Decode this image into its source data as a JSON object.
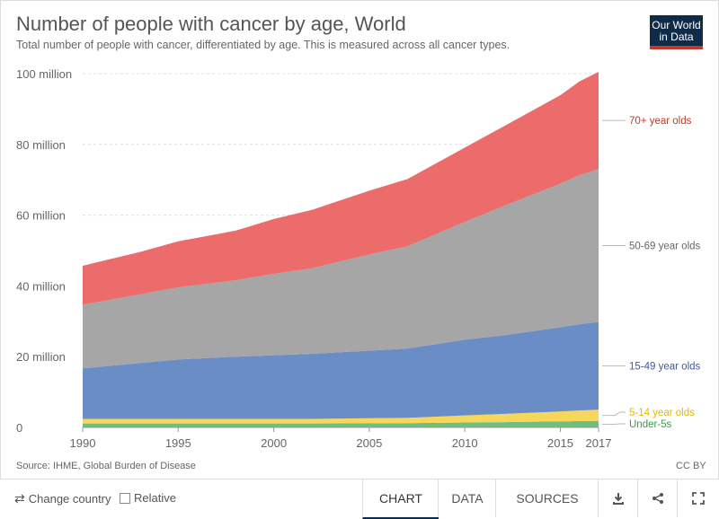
{
  "header": {
    "title": "Number of people with cancer by age, World",
    "subtitle": "Total number of people with cancer, differentiated by age. This is measured across all cancer types.",
    "logo_line1": "Our World",
    "logo_line2": "in Data"
  },
  "footer": {
    "source": "Source: IHME, Global Burden of Disease",
    "license": "CC BY"
  },
  "controls": {
    "change_country": "Change country",
    "relative": "Relative",
    "tabs": [
      "CHART",
      "DATA",
      "SOURCES"
    ],
    "icons": [
      "download-icon",
      "share-icon",
      "fullscreen-icon"
    ]
  },
  "colors": {
    "title": "#555555",
    "grid": "#dddddd",
    "logo_bg": "#0f2b4a",
    "logo_accent": "#c0392b"
  },
  "chart_data": {
    "type": "area",
    "stacked": true,
    "x": [
      1990,
      1993,
      1995,
      1998,
      2000,
      2002,
      2005,
      2007,
      2010,
      2012,
      2015,
      2016,
      2017
    ],
    "x_ticks": [
      1990,
      1995,
      2000,
      2005,
      2010,
      2015,
      2017
    ],
    "y_ticks": [
      0,
      20,
      40,
      60,
      80,
      100
    ],
    "y_tick_labels": [
      "0",
      "20 million",
      "40 million",
      "60 million",
      "80 million",
      "100 million"
    ],
    "ylim": [
      0,
      100
    ],
    "y_units": "million",
    "series": [
      {
        "name": "Under-5s",
        "color": "#6fbf7e",
        "label_color": "#3a9a4a",
        "values": [
          1.1,
          1.1,
          1.1,
          1.1,
          1.1,
          1.1,
          1.2,
          1.2,
          1.4,
          1.5,
          1.7,
          1.8,
          1.8
        ]
      },
      {
        "name": "5-14 year olds",
        "color": "#f7d759",
        "label_color": "#e6b800",
        "values": [
          1.3,
          1.3,
          1.3,
          1.3,
          1.3,
          1.3,
          1.4,
          1.5,
          2.0,
          2.3,
          2.8,
          3.0,
          3.2
        ]
      },
      {
        "name": "15-49 year olds",
        "color": "#6b8dc6",
        "label_color": "#3b5aa0",
        "values": [
          14.3,
          15.8,
          16.8,
          17.6,
          18.0,
          18.4,
          19.1,
          19.6,
          21.4,
          22.2,
          23.8,
          24.4,
          24.8
        ]
      },
      {
        "name": "50-69 year olds",
        "color": "#a6a6a6",
        "label_color": "#666666",
        "values": [
          18.0,
          19.4,
          20.4,
          21.6,
          23.0,
          24.2,
          27.2,
          28.9,
          33.3,
          36.5,
          40.6,
          42.1,
          43.2
        ]
      },
      {
        "name": "70+ year olds",
        "color": "#ec6b6b",
        "label_color": "#c0392b",
        "values": [
          11.0,
          12.0,
          13.0,
          14.0,
          15.5,
          16.5,
          18.0,
          19.0,
          21.0,
          22.5,
          25.0,
          26.5,
          27.5
        ]
      }
    ]
  }
}
